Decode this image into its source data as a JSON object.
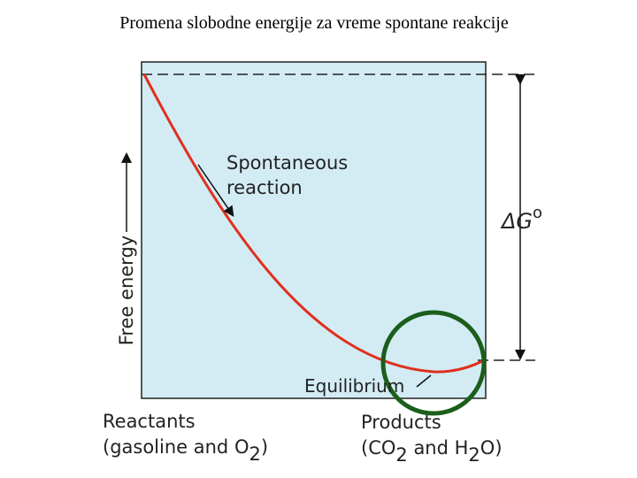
{
  "header": {
    "title": "Promena slobodne energije za vreme spontane reakcije"
  },
  "diagram": {
    "y_axis_label": "Free energy",
    "curve_label": [
      "Spontaneous",
      "reaction"
    ],
    "delta_g": [
      "ΔG",
      "o"
    ],
    "equilibrium_label": "Equilibrium",
    "reactants": {
      "label": "Reactants",
      "formula": [
        "(gasoline and O",
        "2",
        ")"
      ]
    },
    "products": {
      "label": "Products",
      "formula": [
        "(CO",
        "2",
        " and H",
        "2",
        "O)"
      ]
    }
  }
}
